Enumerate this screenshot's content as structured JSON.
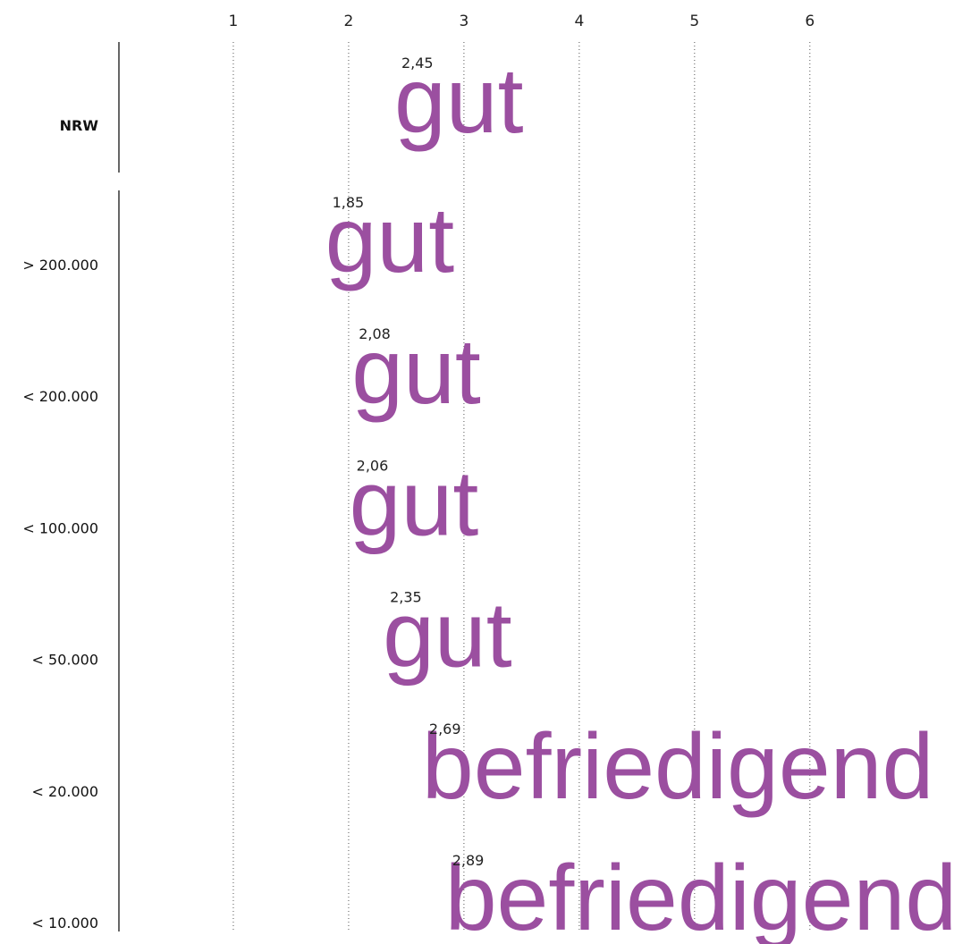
{
  "chart_data": {
    "type": "text",
    "categories": [
      "NRW",
      "> 200.000",
      "< 200.000",
      "< 100.000",
      "< 50.000",
      "< 20.000",
      "< 10.000"
    ],
    "values": [
      2.45,
      1.85,
      2.08,
      2.06,
      2.35,
      2.69,
      2.89
    ],
    "value_labels": [
      "2,45",
      "1,85",
      "2,08",
      "2,06",
      "2,35",
      "2,69",
      "2,89"
    ],
    "ratings": [
      "gut",
      "gut",
      "gut",
      "gut",
      "gut",
      "befriedigend",
      "befriedigend"
    ],
    "color": "#9b4fa0",
    "xlim": [
      0,
      7.25
    ],
    "xticks": [
      1,
      2,
      3,
      4,
      5,
      6
    ],
    "grid": true
  }
}
